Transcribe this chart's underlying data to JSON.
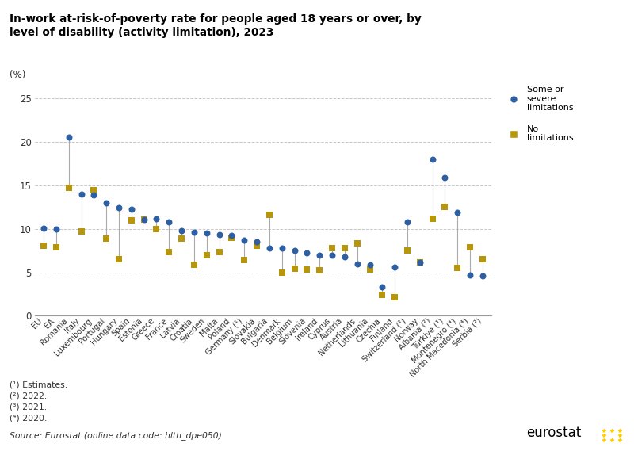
{
  "title": "In-work at-risk-of-poverty rate for people aged 18 years or over, by\nlevel of disability (activity limitation), 2023",
  "ylabel": "(%)",
  "ylim": [
    0,
    27
  ],
  "yticks": [
    0,
    5,
    10,
    15,
    20,
    25
  ],
  "countries": [
    "EU",
    "EA",
    "Romania",
    "Italy",
    "Luxembourg",
    "Portugal",
    "Hungary",
    "Spain",
    "Estonia",
    "Greece",
    "France",
    "Latvia",
    "Croatia",
    "Sweden",
    "Malta",
    "Poland",
    "Germany (¹)",
    "Slovakia",
    "Bulgaria",
    "Denmark",
    "Belgium",
    "Slovenia",
    "Ireland",
    "Cyprus",
    "Austria",
    "Netherlands",
    "Lithuania",
    "Czechia",
    "Finland",
    "Switzerland (²)",
    "Norway",
    "Albania (²)",
    "Türkiye (³)",
    "Montenegro (⁴)",
    "North Macedonia (⁴)",
    "Serbia (²)"
  ],
  "some_severe": [
    10.1,
    10.0,
    20.6,
    14.0,
    13.9,
    13.0,
    12.4,
    12.3,
    11.1,
    11.2,
    10.8,
    9.8,
    9.6,
    9.5,
    9.3,
    9.2,
    8.7,
    8.5,
    7.8,
    7.8,
    7.5,
    7.2,
    7.0,
    7.0,
    6.8,
    6.0,
    5.9,
    3.3,
    5.6,
    10.8,
    6.1,
    18.0,
    15.9,
    11.9,
    4.7,
    4.6
  ],
  "no_limitations": [
    8.1,
    7.9,
    14.7,
    9.7,
    14.4,
    8.9,
    6.5,
    11.0,
    11.1,
    10.0,
    7.3,
    8.9,
    5.9,
    7.0,
    7.3,
    9.0,
    6.4,
    8.1,
    11.6,
    5.0,
    5.4,
    5.3,
    5.2,
    7.8,
    7.8,
    8.3,
    5.3,
    2.4,
    2.1,
    7.5,
    6.1,
    11.2,
    12.5,
    5.5,
    7.9,
    6.5
  ],
  "circle_color": "#2e5fa3",
  "square_color": "#b8960c",
  "line_color": "#aaaaaa",
  "background_color": "#ffffff",
  "grid_color": "#c8c8c8",
  "footnote": "(¹) Estimates.\n(²) 2022.\n(³) 2021.\n(⁴) 2020.",
  "source": "Source: Eurostat (online data code: hlth_dpe050)"
}
